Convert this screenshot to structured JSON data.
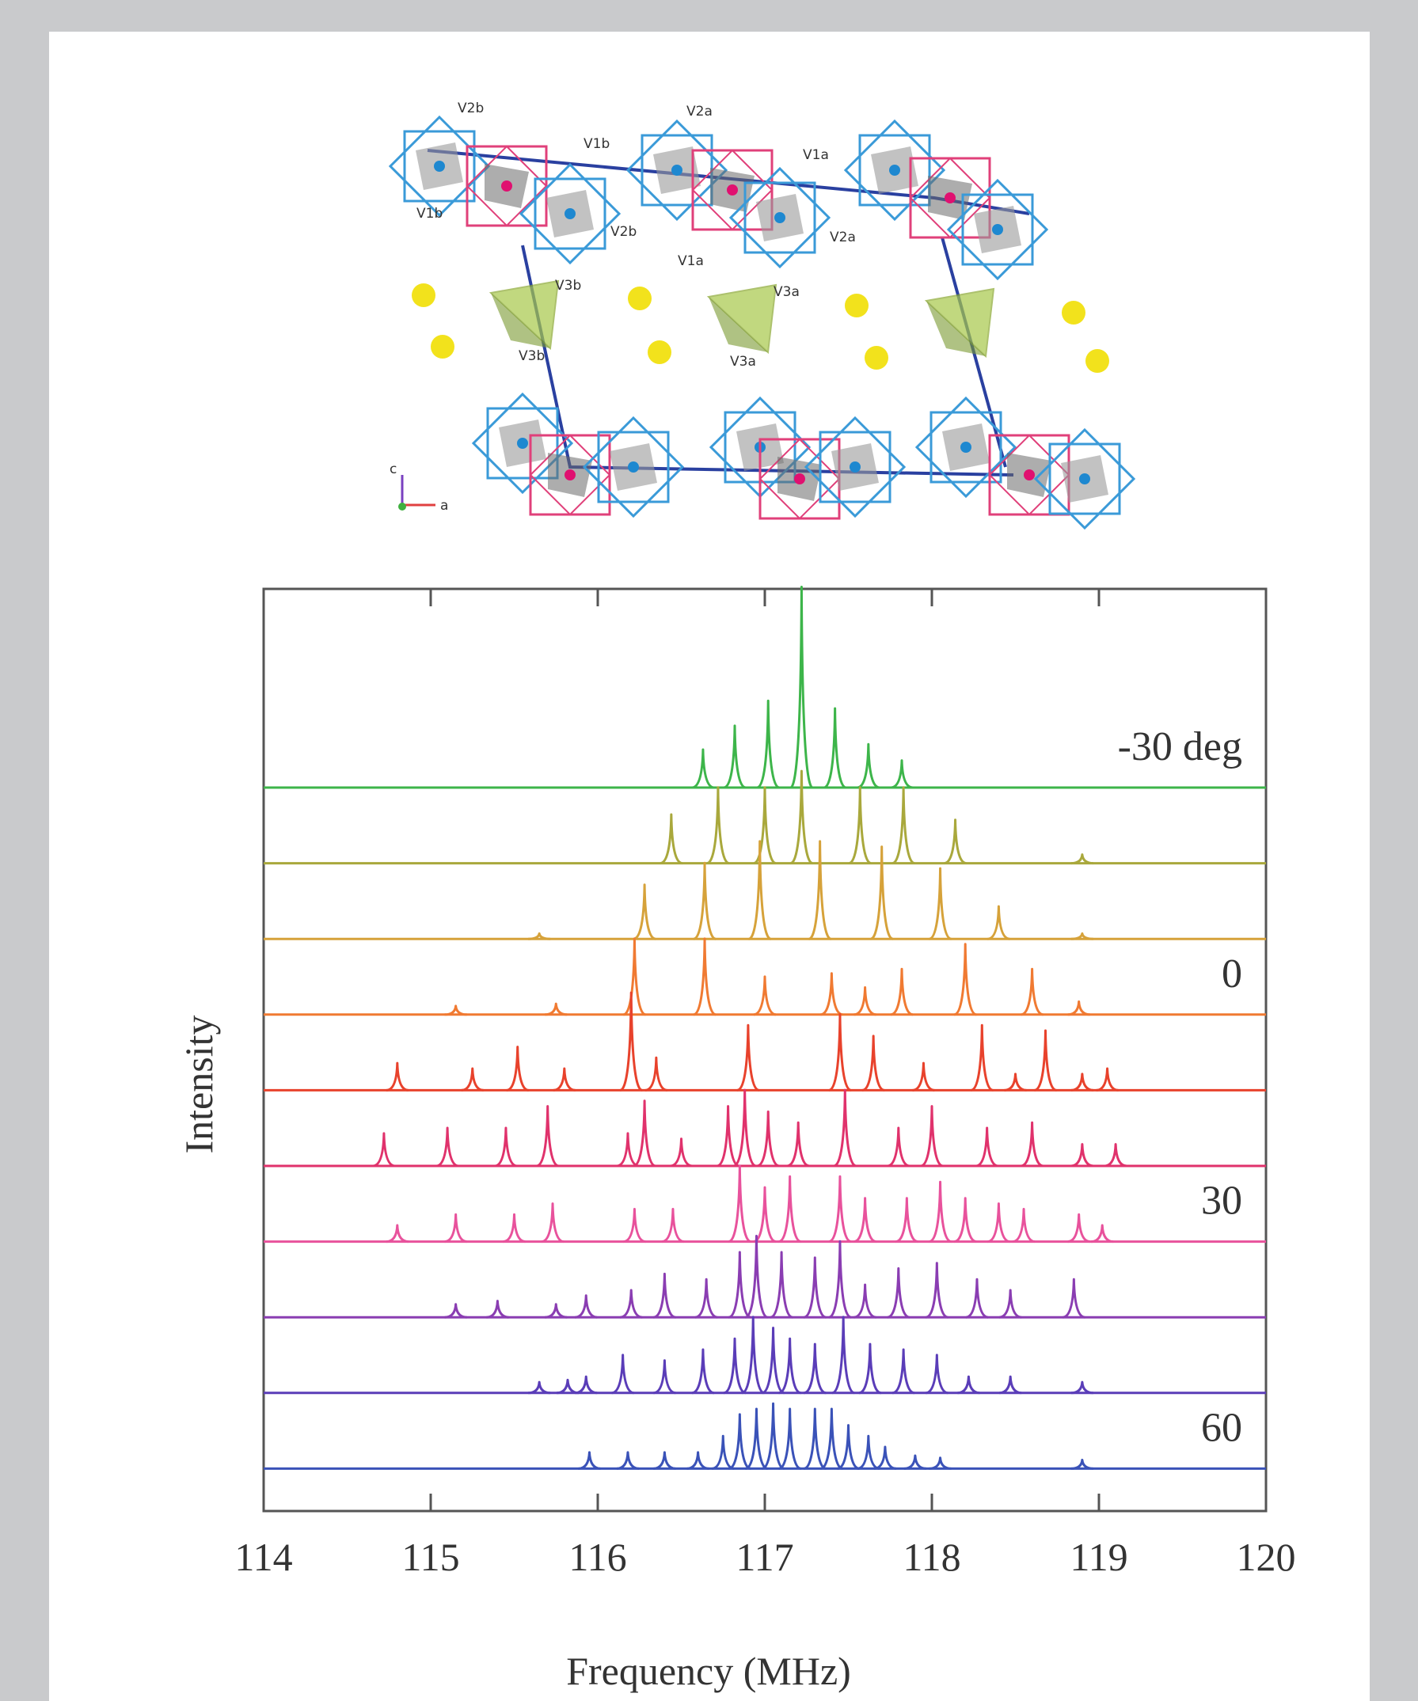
{
  "structure": {
    "labels": [
      "V2b",
      "V1b",
      "V2a",
      "V1a",
      "V1b",
      "V2b",
      "V1a",
      "V2a",
      "V3b",
      "V3a",
      "V3b",
      "V3a"
    ],
    "axes": [
      "c",
      "a"
    ]
  },
  "chart_data": {
    "type": "line",
    "xlabel": "Frequency (MHz)",
    "ylabel": "Intensity",
    "xlim": [
      114,
      120
    ],
    "xticks": [
      114,
      115,
      116,
      117,
      118,
      119,
      120
    ],
    "series": [
      {
        "name": "-30 deg",
        "color": "#3db54a",
        "x": [
          116.63,
          116.82,
          117.02,
          117.22,
          117.42,
          117.62,
          117.82
        ],
        "values": [
          35,
          57,
          80,
          185,
          73,
          40,
          25
        ]
      },
      {
        "name": null,
        "color": "#a9a83c",
        "x": [
          116.44,
          116.72,
          117.0,
          117.22,
          117.57,
          117.83,
          118.14,
          118.9
        ],
        "values": [
          45,
          70,
          70,
          85,
          70,
          70,
          40,
          8
        ]
      },
      {
        "name": null,
        "color": "#d6a23a",
        "x": [
          115.65,
          116.28,
          116.64,
          116.97,
          117.33,
          117.7,
          118.05,
          118.4,
          118.9
        ],
        "values": [
          5,
          50,
          70,
          90,
          90,
          85,
          65,
          30,
          5
        ]
      },
      {
        "name": "0",
        "color": "#f07a32",
        "x": [
          115.15,
          115.75,
          116.22,
          116.64,
          117.0,
          117.4,
          117.6,
          117.82,
          118.2,
          118.6,
          118.88
        ],
        "values": [
          8,
          10,
          70,
          70,
          35,
          38,
          25,
          42,
          65,
          42,
          12
        ]
      },
      {
        "name": null,
        "color": "#e8422c",
        "x": [
          114.8,
          115.25,
          115.52,
          115.8,
          116.2,
          116.35,
          116.9,
          117.45,
          117.65,
          117.95,
          118.3,
          118.5,
          118.68,
          118.9,
          119.05
        ],
        "values": [
          25,
          20,
          40,
          20,
          90,
          30,
          60,
          70,
          50,
          25,
          60,
          15,
          55,
          15,
          20
        ]
      },
      {
        "name": null,
        "color": "#e0326c",
        "x": [
          114.72,
          115.1,
          115.45,
          115.7,
          116.18,
          116.28,
          116.5,
          116.78,
          116.88,
          117.02,
          117.2,
          117.48,
          117.8,
          118.0,
          118.33,
          118.6,
          118.9,
          119.1
        ],
        "values": [
          30,
          35,
          35,
          55,
          30,
          60,
          25,
          55,
          70,
          50,
          40,
          70,
          35,
          55,
          35,
          40,
          20,
          20
        ]
      },
      {
        "name": "30",
        "color": "#e8529c",
        "x": [
          114.8,
          115.15,
          115.5,
          115.73,
          116.22,
          116.45,
          116.85,
          117.0,
          117.15,
          117.45,
          117.6,
          117.85,
          118.05,
          118.2,
          118.4,
          118.55,
          118.88,
          119.02
        ],
        "values": [
          15,
          25,
          25,
          35,
          30,
          30,
          70,
          50,
          60,
          60,
          40,
          40,
          55,
          40,
          35,
          30,
          25,
          15
        ]
      },
      {
        "name": null,
        "color": "#8a3db2",
        "x": [
          115.15,
          115.4,
          115.75,
          115.93,
          116.2,
          116.4,
          116.65,
          116.85,
          116.95,
          117.1,
          117.3,
          117.45,
          117.6,
          117.8,
          118.03,
          118.27,
          118.47,
          118.85
        ],
        "values": [
          12,
          15,
          12,
          20,
          25,
          40,
          35,
          60,
          75,
          60,
          55,
          70,
          30,
          45,
          50,
          35,
          25,
          35
        ]
      },
      {
        "name": null,
        "color": "#5a3db8",
        "x": [
          115.65,
          115.82,
          115.93,
          116.15,
          116.4,
          116.63,
          116.82,
          116.93,
          117.05,
          117.15,
          117.3,
          117.47,
          117.63,
          117.83,
          118.03,
          118.22,
          118.47,
          118.9
        ],
        "values": [
          10,
          12,
          15,
          35,
          30,
          40,
          50,
          70,
          60,
          50,
          45,
          70,
          45,
          40,
          35,
          15,
          15,
          10
        ]
      },
      {
        "name": "60",
        "color": "#3a52b8",
        "x": [
          115.95,
          116.18,
          116.4,
          116.6,
          116.75,
          116.85,
          116.95,
          117.05,
          117.15,
          117.3,
          117.4,
          117.5,
          117.62,
          117.72,
          117.9,
          118.05,
          118.9
        ],
        "values": [
          15,
          15,
          15,
          15,
          30,
          50,
          55,
          60,
          55,
          55,
          55,
          40,
          30,
          20,
          12,
          10,
          8
        ]
      }
    ]
  }
}
